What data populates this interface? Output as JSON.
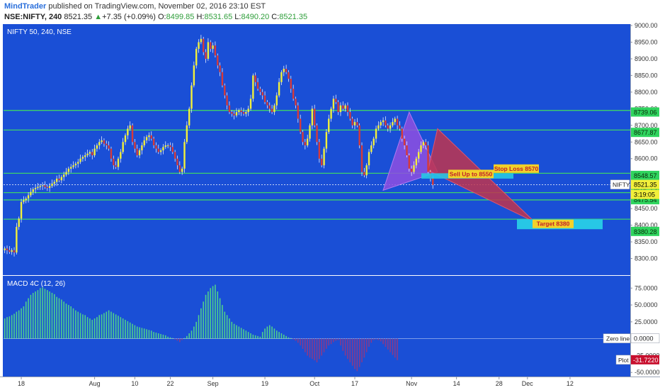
{
  "header": {
    "publisher": "MindTrader",
    "published_text": "published on TradingView.com, November 02, 2016 23:10 EST",
    "symbol": "NSE:NIFTY, 240",
    "last": "8521.35",
    "change_arrow": "▲",
    "change": "+7.35 (+0.09%)",
    "o_label": "O:",
    "o_value": "8499.85",
    "h_label": "H:",
    "h_value": "8531.65",
    "l_label": "L:",
    "l_value": "8490.20",
    "c_label": "C:",
    "c_value": "8521.35"
  },
  "colors": {
    "background": "#1a4fd6",
    "bull": "#f2f03a",
    "bear": "#d63a3a",
    "level_line": "#3dd16a",
    "macd_pos": "#4fd18c",
    "macd_neg": "#8a3a88",
    "harmonic_left": "#8f4fe0",
    "harmonic_right": "#c0344e",
    "box": "#27c7e6"
  },
  "chart_data": [
    {
      "type": "candlestick",
      "title": "NIFTY 50, 240, NSE",
      "ylim": [
        8250,
        9000
      ],
      "y_ticks": [
        8300,
        8350,
        8400,
        8450,
        8500,
        8550,
        8600,
        8650,
        8700,
        8750,
        8800,
        8850,
        8900,
        8950,
        9000
      ],
      "y_tick_labels": [
        "8300.00",
        "8350.00",
        "8400.00",
        "8450.00",
        "8500.00",
        "8550.00",
        "8600.00",
        "8650.00",
        "8700.00",
        "8750.00",
        "8800.00",
        "8850.00",
        "8900.00",
        "8950.00",
        "9000.00"
      ],
      "x_ticks": [
        {
          "label": "18",
          "i": 7
        },
        {
          "label": "Aug",
          "i": 38
        },
        {
          "label": "10",
          "i": 55
        },
        {
          "label": "22",
          "i": 70
        },
        {
          "label": "Sep",
          "i": 88
        },
        {
          "label": "19",
          "i": 110
        },
        {
          "label": "Oct",
          "i": 131
        },
        {
          "label": "17",
          "i": 148
        },
        {
          "label": "Nov",
          "i": 172
        },
        {
          "label": "14",
          "i": 191
        },
        {
          "label": "28",
          "i": 209
        },
        {
          "label": "Dec",
          "i": 221
        },
        {
          "label": "12",
          "i": 239
        }
      ],
      "slots": 260,
      "close": [
        8330,
        8325,
        8320,
        8325,
        8318,
        8395,
        8420,
        8470,
        8475,
        8480,
        8490,
        8500,
        8508,
        8512,
        8515,
        8518,
        8520,
        8515,
        8512,
        8518,
        8525,
        8530,
        8540,
        8535,
        8545,
        8552,
        8560,
        8570,
        8575,
        8580,
        8585,
        8590,
        8600,
        8605,
        8610,
        8615,
        8620,
        8610,
        8630,
        8640,
        8650,
        8655,
        8645,
        8640,
        8630,
        8600,
        8580,
        8575,
        8600,
        8620,
        8650,
        8670,
        8690,
        8700,
        8650,
        8630,
        8610,
        8625,
        8640,
        8655,
        8665,
        8670,
        8660,
        8640,
        8630,
        8620,
        8625,
        8635,
        8640,
        8640,
        8635,
        8620,
        8600,
        8580,
        8560,
        8570,
        8650,
        8700,
        8750,
        8820,
        8880,
        8930,
        8950,
        8960,
        8920,
        8900,
        8950,
        8930,
        8940,
        8910,
        8880,
        8860,
        8820,
        8790,
        8760,
        8740,
        8735,
        8730,
        8740,
        8745,
        8740,
        8735,
        8740,
        8750,
        8780,
        8850,
        8830,
        8810,
        8800,
        8790,
        8770,
        8760,
        8750,
        8740,
        8760,
        8790,
        8830,
        8860,
        8870,
        8860,
        8840,
        8810,
        8780,
        8760,
        8720,
        8680,
        8650,
        8640,
        8660,
        8700,
        8750,
        8700,
        8650,
        8600,
        8580,
        8630,
        8680,
        8720,
        8750,
        8780,
        8770,
        8740,
        8760,
        8750,
        8760,
        8740,
        8720,
        8700,
        8710,
        8700,
        8640,
        8560,
        8550,
        8580,
        8620,
        8640,
        8660,
        8690,
        8700,
        8710,
        8715,
        8700,
        8690,
        8700,
        8710,
        8720,
        8700,
        8690,
        8660,
        8640,
        8610,
        8570,
        8560,
        8580,
        8600,
        8620,
        8640,
        8650,
        8640,
        8560,
        8540,
        8521.35
      ],
      "annotations": {
        "levels": [
          8745,
          8686,
          8556,
          8498,
          8476,
          8418
        ],
        "dotted_price": 8521.35,
        "price_labels": [
          {
            "text": "8739.06",
            "y": 8739.06
          },
          {
            "text": "8677.87",
            "y": 8677.87
          },
          {
            "text": "8548.57",
            "y": 8548.57
          },
          {
            "text": "8505.12",
            "y": 8505.12
          },
          {
            "text": "8475.54",
            "y": 8475.54
          },
          {
            "text": "8380.28",
            "y": 8380.28
          }
        ],
        "nifty_tag": "NIFTY",
        "last_label": "8521.35",
        "countdown": "3:19:05",
        "stop_loss": "Stop Loss 8570",
        "sell_up_to": "Sell Up to 8550",
        "target": "Target 8380"
      }
    },
    {
      "type": "bar",
      "title": "MACD 4C (12, 26)",
      "ylim": [
        -55,
        90
      ],
      "y_ticks": [
        -50,
        -25,
        0,
        25,
        50,
        75
      ],
      "y_tick_labels": [
        "-50.0000",
        "-25.0000",
        "0.0000",
        "25.0000",
        "50.0000",
        "75.0000"
      ],
      "zero_line_label": "Zero line",
      "zero_line_value": "0.0000",
      "plot_label": "Plot",
      "plot_value": "-31.7220",
      "values": [
        30,
        32,
        33,
        35,
        37,
        40,
        42,
        45,
        48,
        55,
        60,
        65,
        68,
        70,
        72,
        75,
        76,
        74,
        72,
        70,
        68,
        66,
        62,
        60,
        58,
        55,
        52,
        50,
        48,
        45,
        42,
        40,
        38,
        36,
        35,
        32,
        30,
        28,
        30,
        32,
        35,
        36,
        38,
        40,
        42,
        40,
        38,
        36,
        34,
        32,
        30,
        28,
        26,
        24,
        22,
        20,
        18,
        17,
        16,
        15,
        14,
        13,
        12,
        10,
        9,
        8,
        7,
        6,
        5,
        3,
        2,
        1,
        -1,
        -3,
        -5,
        -2,
        1,
        4,
        8,
        12,
        18,
        25,
        35,
        45,
        55,
        65,
        70,
        75,
        78,
        80,
        70,
        60,
        50,
        40,
        35,
        30,
        25,
        22,
        20,
        18,
        16,
        14,
        12,
        10,
        8,
        6,
        5,
        4,
        3,
        10,
        15,
        18,
        20,
        18,
        15,
        12,
        10,
        8,
        6,
        4,
        2,
        1,
        -1,
        -3,
        -6,
        -10,
        -15,
        -20,
        -25,
        -28,
        -30,
        -32,
        -35,
        -30,
        -25,
        -20,
        -15,
        -10,
        -8,
        -5,
        -3,
        -2,
        -10,
        -18,
        -25,
        -30,
        -35,
        -40,
        -45,
        -48,
        -42,
        -35,
        -28,
        -20,
        -12,
        -6,
        -2,
        -1,
        -2,
        -4,
        -8,
        -12,
        -16,
        -20,
        -24,
        -28,
        -31.722
      ]
    }
  ]
}
